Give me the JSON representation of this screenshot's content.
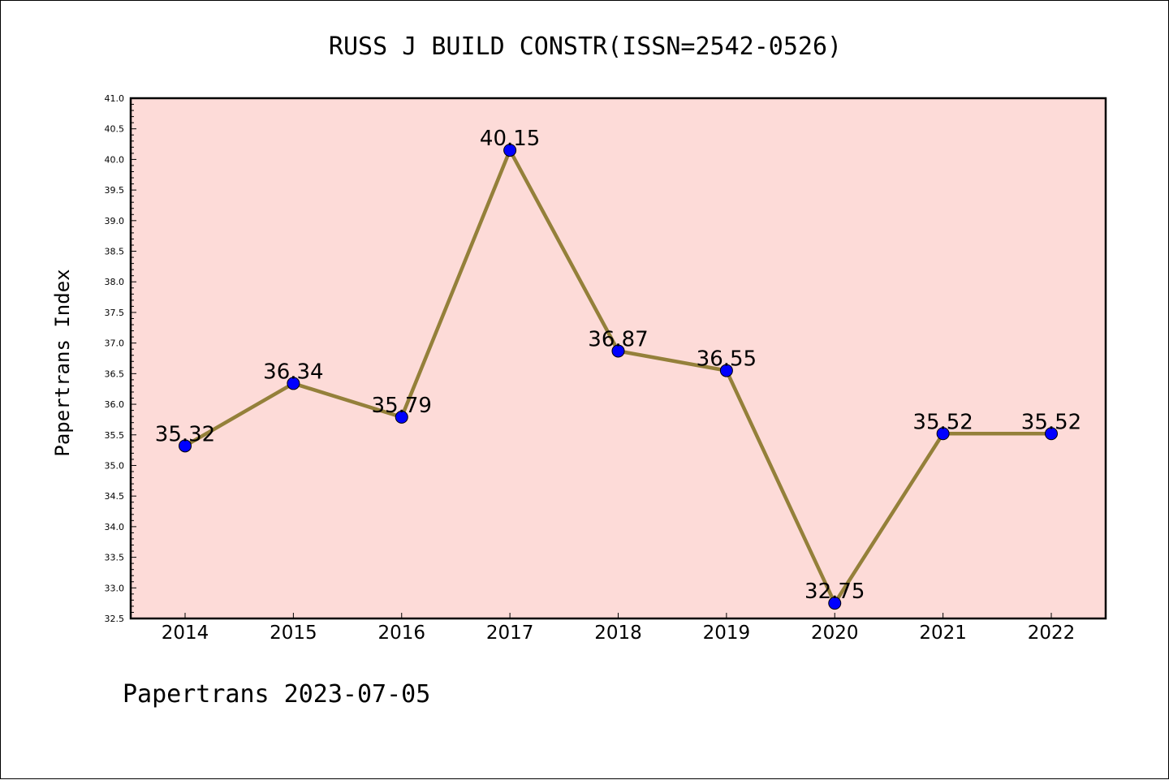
{
  "chart_data": {
    "type": "line",
    "title": "RUSS J BUILD CONSTR(ISSN=2542-0526)",
    "ylabel": "Papertrans Index",
    "xlabel": "",
    "categories": [
      "2014",
      "2015",
      "2016",
      "2017",
      "2018",
      "2019",
      "2020",
      "2021",
      "2022"
    ],
    "values": [
      35.32,
      36.34,
      35.79,
      40.15,
      36.87,
      36.55,
      32.75,
      35.52,
      35.52
    ],
    "data_labels": [
      "35.32",
      "36.34",
      "35.79",
      "40.15",
      "36.87",
      "36.55",
      "32.75",
      "35.52",
      "35.52"
    ],
    "ylim": [
      32.5,
      41.0
    ],
    "yticks": [
      "32.5",
      "33.0",
      "33.5",
      "34.0",
      "34.5",
      "35.0",
      "35.5",
      "36.0",
      "36.5",
      "37.0",
      "37.5",
      "38.0",
      "38.5",
      "39.0",
      "39.5",
      "40.0",
      "40.5",
      "41.0"
    ],
    "grid": false,
    "colors": {
      "plot_background": "#fddbd8",
      "line": "#94803a",
      "marker": "#0000ff"
    }
  },
  "footer": "Papertrans 2023-07-05"
}
